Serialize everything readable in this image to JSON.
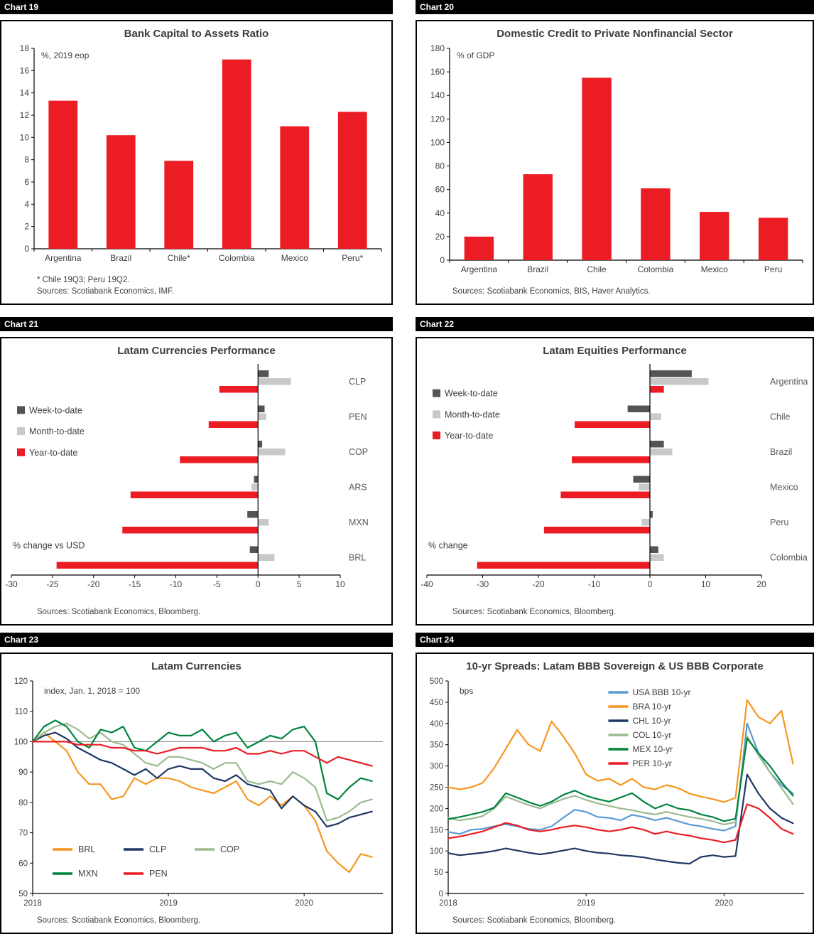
{
  "colors": {
    "bar_red": "#EC1C24",
    "week_gray": "#545454",
    "month_gray": "#C9C9C9",
    "orange": "#F79620",
    "navy": "#1F3864",
    "light_green": "#9BBB8F",
    "dark_green": "#00843D",
    "blue": "#5B9BD5"
  },
  "chart_data": [
    {
      "id": "chart19",
      "panel_label": "Chart 19",
      "type": "bar",
      "title": "Bank Capital to Assets Ratio",
      "unit_label": "%, 2019 eop",
      "categories": [
        "Argentina",
        "Brazil",
        "Chile*",
        "Colombia",
        "Mexico",
        "Peru*"
      ],
      "values": [
        13.3,
        10.2,
        7.9,
        17.0,
        11.0,
        12.3
      ],
      "ylim": [
        0,
        18
      ],
      "ytick_step": 2,
      "bar_color": "#EC1C24",
      "footnote": "* Chile 19Q3; Peru 19Q2.",
      "sources": "Sources: Scotiabank Economics, IMF."
    },
    {
      "id": "chart20",
      "panel_label": "Chart 20",
      "type": "bar",
      "title": "Domestic Credit to Private Nonfinancial Sector",
      "unit_label": "% of GDP",
      "categories": [
        "Argentina",
        "Brazil",
        "Chile",
        "Colombia",
        "Mexico",
        "Peru"
      ],
      "values": [
        20,
        73,
        155,
        61,
        41,
        36
      ],
      "ylim": [
        0,
        180
      ],
      "ytick_step": 20,
      "bar_color": "#EC1C24",
      "sources": "Sources: Scotiabank Economics, BIS, Haver Analytics."
    },
    {
      "id": "chart21",
      "panel_label": "Chart 21",
      "type": "grouped_hbar",
      "title": "Latam Currencies Performance",
      "unit_label": "% change vs USD",
      "categories": [
        "CLP",
        "PEN",
        "COP",
        "ARS",
        "MXN",
        "BRL"
      ],
      "series": [
        {
          "name": "Week-to-date",
          "color": "#545454",
          "values": [
            1.3,
            0.8,
            0.5,
            -0.5,
            -1.3,
            -1.0
          ]
        },
        {
          "name": "Month-to-date",
          "color": "#C9C9C9",
          "values": [
            4.0,
            1.0,
            3.3,
            -0.8,
            1.3,
            2.0
          ]
        },
        {
          "name": "Year-to-date",
          "color": "#EC1C24",
          "values": [
            -4.7,
            -6.0,
            -9.5,
            -15.5,
            -16.5,
            -24.5
          ]
        }
      ],
      "xlim": [
        -30,
        10
      ],
      "xtick_step": 5,
      "legend_y_frac": 0.2,
      "sources": "Sources: Scotiabank Economics, Bloomberg."
    },
    {
      "id": "chart22",
      "panel_label": "Chart 22",
      "type": "grouped_hbar",
      "title": "Latam Equities Performance",
      "unit_label": "% change",
      "categories": [
        "Argentina",
        "Chile",
        "Brazil",
        "Mexico",
        "Peru",
        "Colombia"
      ],
      "series": [
        {
          "name": "Week-to-date",
          "color": "#545454",
          "values": [
            7.5,
            -4.0,
            2.5,
            -3.0,
            0.5,
            1.5
          ]
        },
        {
          "name": "Month-to-date",
          "color": "#C9C9C9",
          "values": [
            10.5,
            2.0,
            4.0,
            -2.0,
            -1.5,
            2.5
          ]
        },
        {
          "name": "Year-to-date",
          "color": "#EC1C24",
          "values": [
            2.5,
            -13.5,
            -14.0,
            -16.0,
            -19.0,
            -31.0
          ]
        }
      ],
      "xlim": [
        -40,
        20
      ],
      "xtick_step": 10,
      "legend_y_frac": 0.12,
      "sources": "Sources: Scotiabank Economics, Bloomberg."
    },
    {
      "id": "chart23",
      "panel_label": "Chart 23",
      "type": "line",
      "title": "Latam Currencies",
      "unit_label": "index, Jan. 1, 2018 = 100",
      "x": [
        2018.0,
        2018.083,
        2018.167,
        2018.25,
        2018.333,
        2018.417,
        2018.5,
        2018.583,
        2018.667,
        2018.75,
        2018.833,
        2018.917,
        2019.0,
        2019.083,
        2019.167,
        2019.25,
        2019.333,
        2019.417,
        2019.5,
        2019.583,
        2019.667,
        2019.75,
        2019.833,
        2019.917,
        2020.0,
        2020.083,
        2020.167,
        2020.25,
        2020.333,
        2020.417,
        2020.5
      ],
      "xlim": [
        2018,
        2020.58
      ],
      "xticks": [
        2018,
        2019,
        2020
      ],
      "ylim": [
        50,
        120
      ],
      "ytick_step": 10,
      "ref_line": 100,
      "legend_pos": "bottom-left",
      "series": [
        {
          "name": "BRL",
          "color": "#F79620",
          "values": [
            100,
            103,
            100,
            97,
            90,
            86,
            86,
            81,
            82,
            88,
            86,
            88,
            88,
            87,
            85,
            84,
            83,
            85,
            87,
            81,
            79,
            82,
            79,
            82,
            79,
            74,
            64,
            60,
            57,
            63,
            62
          ]
        },
        {
          "name": "CLP",
          "color": "#1F3864",
          "values": [
            100,
            102,
            103,
            101,
            98,
            96,
            94,
            93,
            91,
            89,
            91,
            88,
            91,
            92,
            91,
            91,
            88,
            87,
            89,
            86,
            85,
            84,
            78,
            82,
            79,
            77,
            72,
            73,
            75,
            76,
            77
          ]
        },
        {
          "name": "COP",
          "color": "#9BBB8F",
          "values": [
            100,
            103,
            105,
            106,
            104,
            101,
            103,
            100,
            99,
            96,
            93,
            92,
            95,
            95,
            94,
            93,
            91,
            93,
            93,
            87,
            86,
            87,
            86,
            90,
            88,
            85,
            74,
            75,
            77,
            80,
            81
          ]
        },
        {
          "name": "MXN",
          "color": "#00843D",
          "values": [
            100,
            105,
            107,
            105,
            100,
            98,
            104,
            103,
            105,
            98,
            97,
            100,
            103,
            102,
            102,
            104,
            100,
            102,
            103,
            98,
            100,
            102,
            101,
            104,
            105,
            100,
            83,
            81,
            85,
            88,
            87
          ]
        },
        {
          "name": "PEN",
          "color": "#EC1C24",
          "values": [
            100,
            100,
            100,
            100,
            99,
            99,
            99,
            98,
            98,
            97,
            97,
            96,
            97,
            98,
            98,
            98,
            97,
            97,
            98,
            96,
            96,
            97,
            96,
            97,
            97,
            95,
            93,
            95,
            94,
            93,
            92
          ]
        }
      ],
      "sources": "Sources: Scotiabank Economics, Bloomberg."
    },
    {
      "id": "chart24",
      "panel_label": "Chart 24",
      "type": "line",
      "title": "10-yr Spreads: Latam BBB Sovereign & US BBB Corporate",
      "unit_label": "bps",
      "x": [
        2018.0,
        2018.083,
        2018.167,
        2018.25,
        2018.333,
        2018.417,
        2018.5,
        2018.583,
        2018.667,
        2018.75,
        2018.833,
        2018.917,
        2019.0,
        2019.083,
        2019.167,
        2019.25,
        2019.333,
        2019.417,
        2019.5,
        2019.583,
        2019.667,
        2019.75,
        2019.833,
        2019.917,
        2020.0,
        2020.083,
        2020.167,
        2020.25,
        2020.333,
        2020.417,
        2020.5
      ],
      "xlim": [
        2018,
        2020.58
      ],
      "xticks": [
        2018,
        2019,
        2020
      ],
      "ylim": [
        0,
        500
      ],
      "ytick_step": 50,
      "legend_pos": "top-right",
      "series": [
        {
          "name": "USA BBB 10-yr",
          "color": "#5B9BD5",
          "values": [
            145,
            140,
            150,
            152,
            158,
            163,
            158,
            152,
            150,
            158,
            178,
            197,
            192,
            180,
            178,
            172,
            185,
            180,
            172,
            178,
            170,
            162,
            158,
            152,
            148,
            158,
            400,
            330,
            285,
            255,
            235
          ]
        },
        {
          "name": "BRA 10-yr",
          "color": "#F79620",
          "values": [
            250,
            245,
            250,
            260,
            295,
            340,
            385,
            350,
            335,
            405,
            370,
            330,
            280,
            265,
            270,
            255,
            270,
            250,
            245,
            255,
            248,
            235,
            228,
            222,
            215,
            225,
            455,
            415,
            400,
            430,
            305
          ]
        },
        {
          "name": "CHL 10-yr",
          "color": "#1F3864",
          "values": [
            95,
            90,
            93,
            96,
            100,
            106,
            101,
            96,
            92,
            96,
            101,
            106,
            100,
            96,
            94,
            90,
            88,
            85,
            80,
            76,
            72,
            70,
            86,
            90,
            86,
            88,
            280,
            235,
            200,
            178,
            165
          ]
        },
        {
          "name": "COL 10-yr",
          "color": "#9BBB8F",
          "values": [
            178,
            172,
            176,
            182,
            200,
            228,
            218,
            208,
            200,
            212,
            222,
            230,
            220,
            212,
            206,
            200,
            196,
            190,
            186,
            192,
            186,
            180,
            176,
            170,
            162,
            168,
            370,
            325,
            285,
            248,
            210
          ]
        },
        {
          "name": "MEX 10-yr",
          "color": "#00843D",
          "values": [
            175,
            180,
            186,
            192,
            202,
            236,
            226,
            215,
            206,
            216,
            232,
            242,
            230,
            222,
            216,
            226,
            236,
            216,
            200,
            210,
            200,
            196,
            186,
            180,
            170,
            176,
            365,
            330,
            300,
            262,
            230
          ]
        },
        {
          "name": "PER 10-yr",
          "color": "#EC1C24",
          "values": [
            130,
            134,
            140,
            146,
            156,
            166,
            160,
            150,
            146,
            150,
            156,
            160,
            156,
            150,
            146,
            150,
            156,
            150,
            140,
            146,
            140,
            136,
            130,
            126,
            120,
            126,
            210,
            200,
            178,
            152,
            140
          ]
        }
      ],
      "sources": "Sources: Scotiabank Economics, Bloomberg."
    }
  ]
}
